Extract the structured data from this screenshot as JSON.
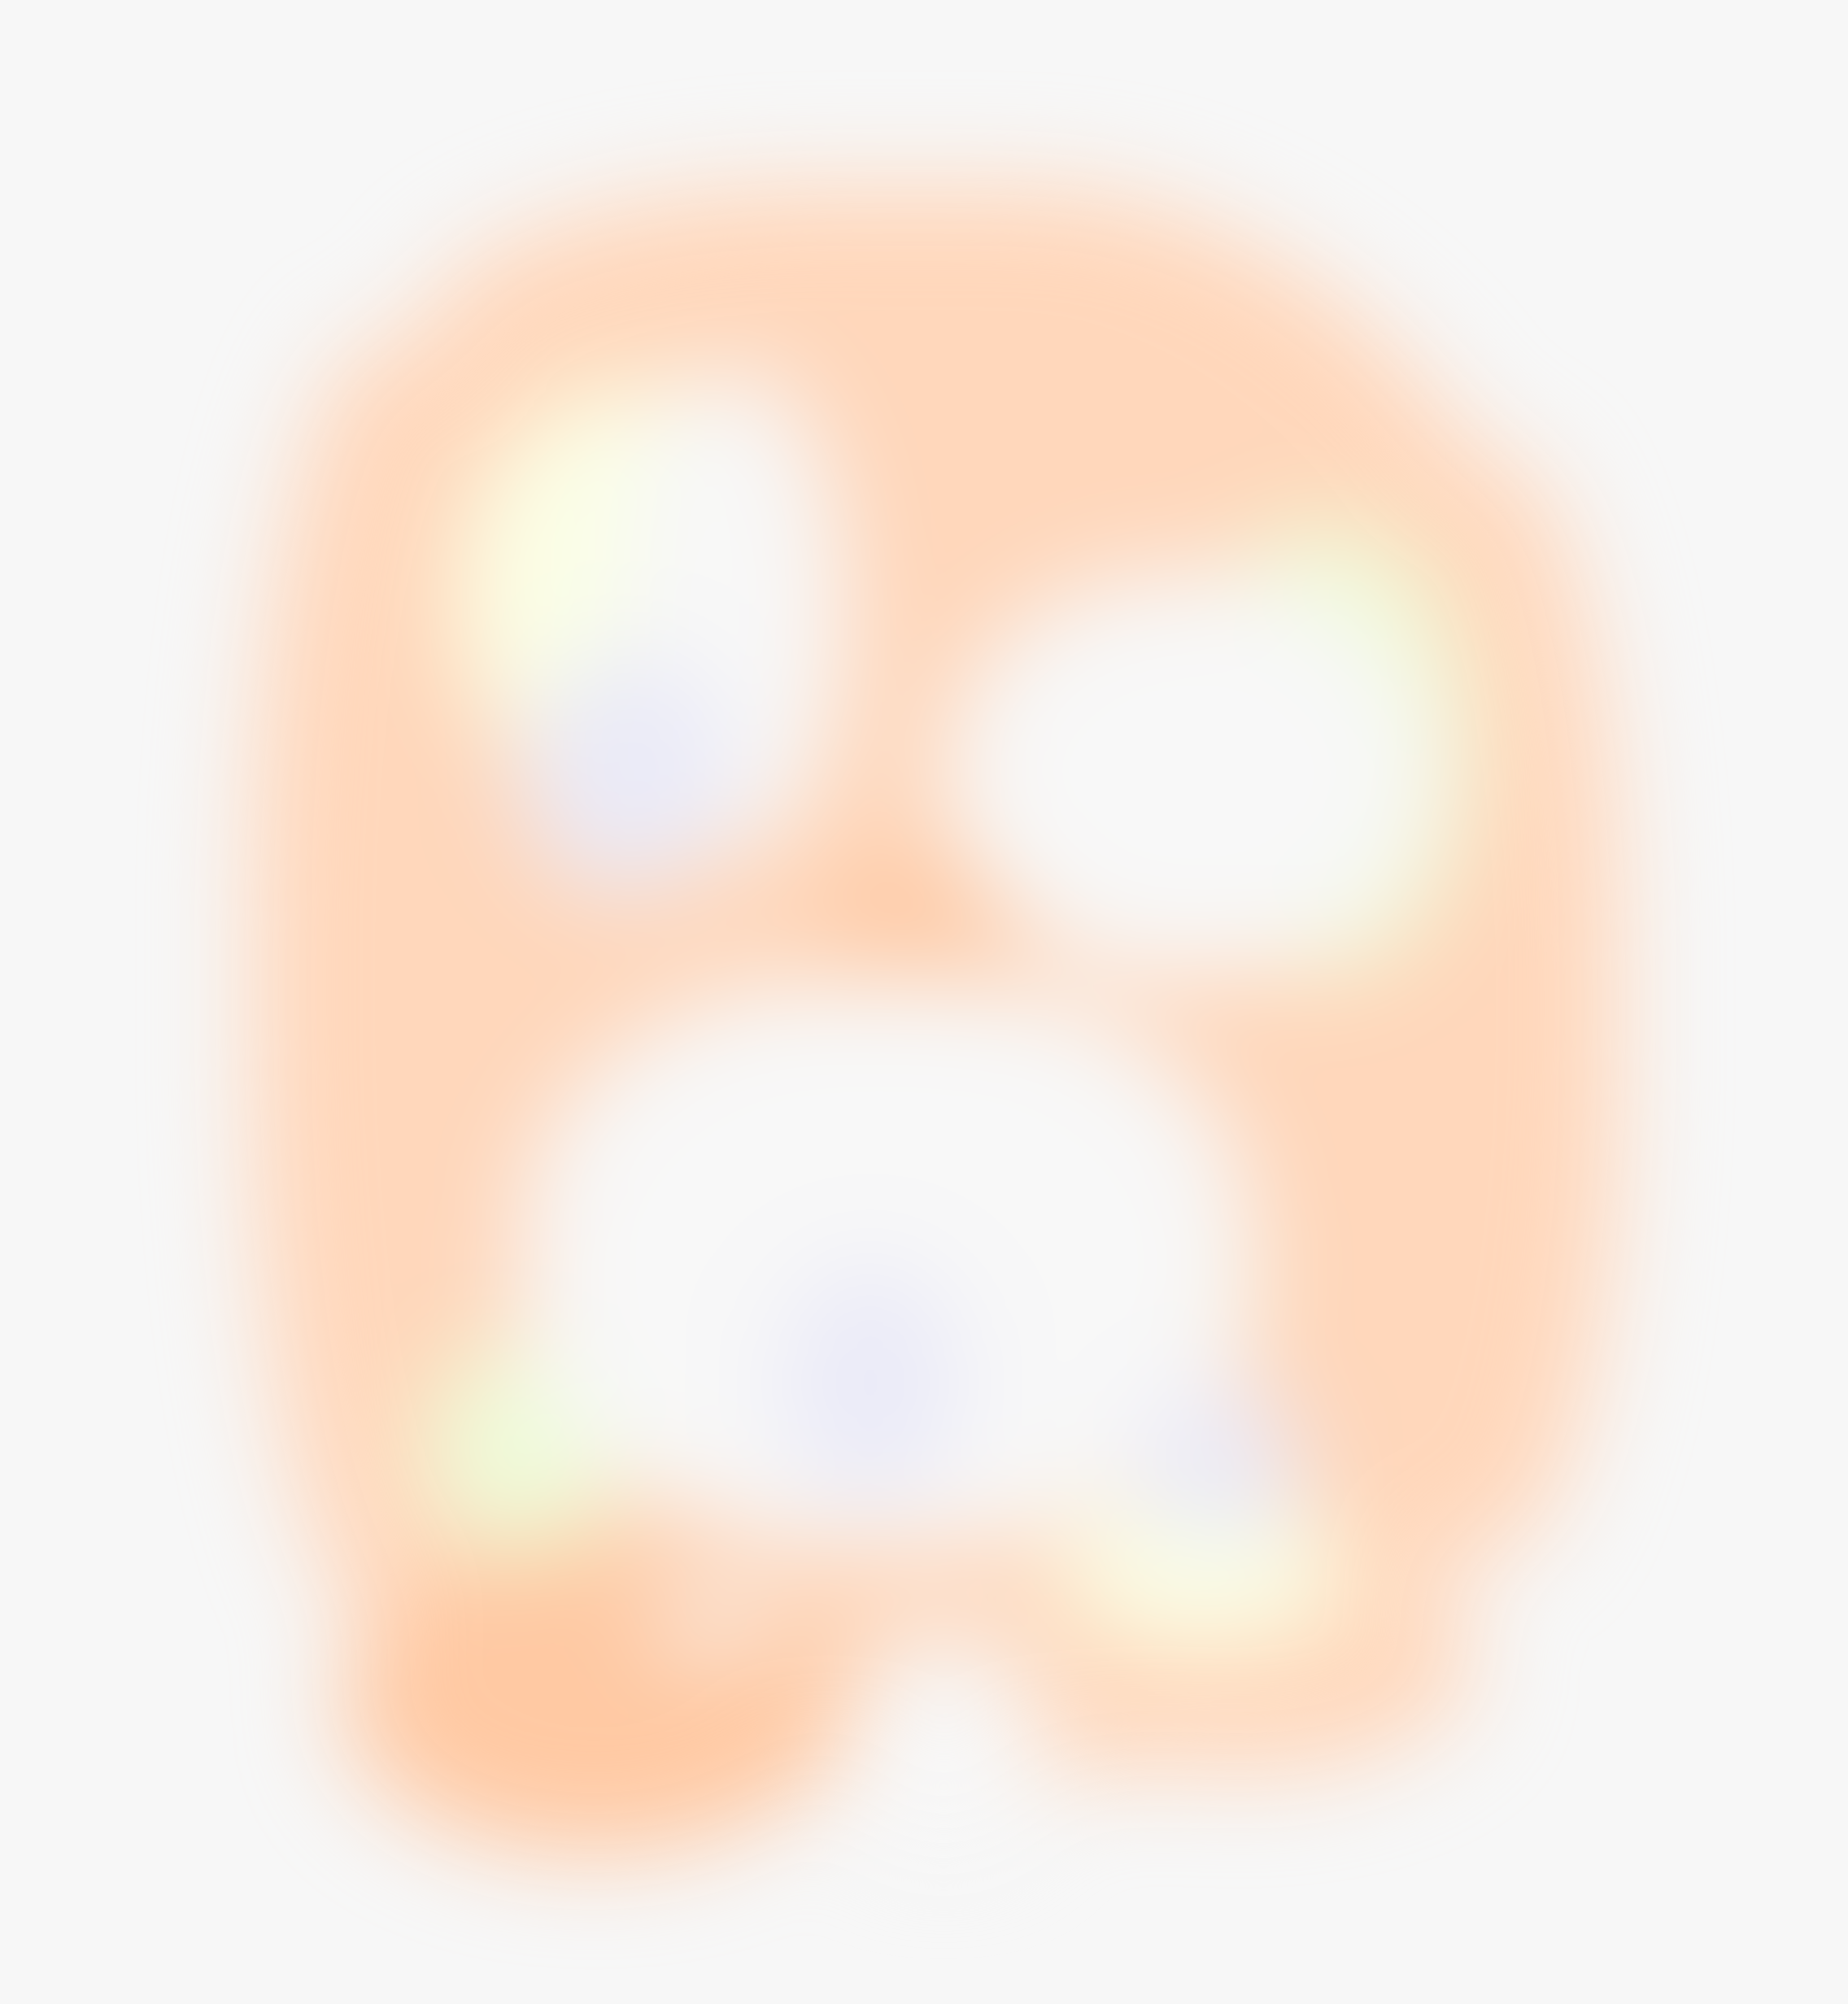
{
  "image": {
    "kind": "blurred-color-blob",
    "palette": {
      "background": "#f7f7f7",
      "peach": "#ffd7bb",
      "peach_deep": "#ffc9a3",
      "pale_yellow": "#fbffe6",
      "lime_tint": "#effcd9",
      "lavender_tint": "#ebebf8",
      "near_white": "#f8f8f8"
    },
    "blobs": [
      {
        "name": "outer-peach-mass",
        "color": "peach"
      },
      {
        "name": "top-peach-band",
        "color": "peach"
      },
      {
        "name": "left-peach-band",
        "color": "peach"
      },
      {
        "name": "right-peach-band",
        "color": "peach"
      },
      {
        "name": "bottom-left-peach-lobe",
        "color": "peach_deep"
      },
      {
        "name": "bottom-right-peach-lobe",
        "color": "peach"
      },
      {
        "name": "center-peach-spot",
        "color": "peach_deep"
      },
      {
        "name": "upper-left-yellow-rim",
        "color": "pale_yellow"
      },
      {
        "name": "right-yellow-rim",
        "color": "lime_tint"
      },
      {
        "name": "lower-left-yellow-spot",
        "color": "lime_tint"
      },
      {
        "name": "lower-right-lime-spot",
        "color": "lime_tint"
      },
      {
        "name": "bottom-right-yellow-spot",
        "color": "pale_yellow"
      },
      {
        "name": "upper-left-white-core",
        "color": "near_white"
      },
      {
        "name": "right-white-core",
        "color": "near_white"
      },
      {
        "name": "lower-white-core",
        "color": "near_white"
      },
      {
        "name": "left-lavender-spot",
        "color": "lavender_tint"
      },
      {
        "name": "lower-lavender-spot",
        "color": "lavender_tint"
      },
      {
        "name": "bottom-right-lavender-spot",
        "color": "lavender_tint"
      },
      {
        "name": "bottom-white-notch",
        "color": "background"
      },
      {
        "name": "bottom-small-white-oval",
        "color": "near_white"
      }
    ]
  }
}
